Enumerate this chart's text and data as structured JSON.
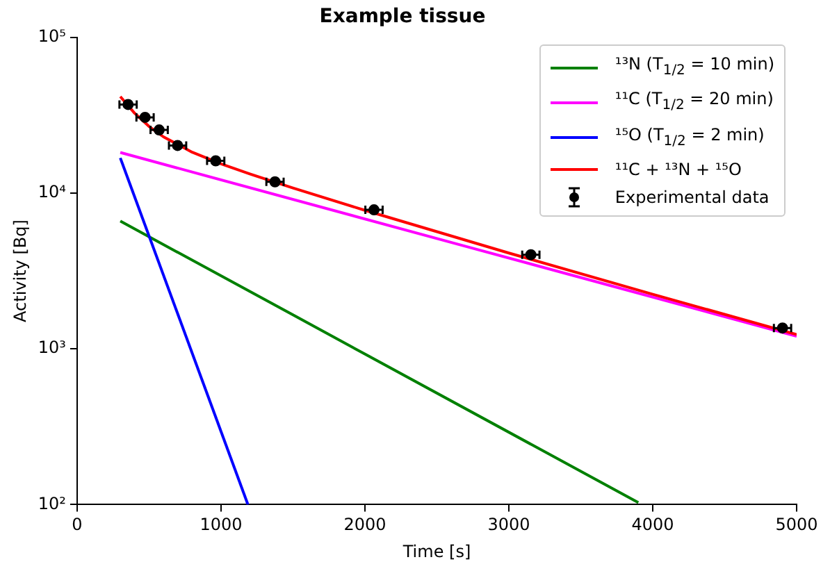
{
  "chart_data": {
    "type": "line",
    "title": "Example tissue",
    "xlabel": "Time [s]",
    "ylabel": "Activity [Bq]",
    "xlim": [
      0,
      5000
    ],
    "xticks": [
      0,
      1000,
      2000,
      3000,
      4000,
      5000
    ],
    "ylim": [
      100,
      100000
    ],
    "yticks": [
      {
        "value": 100,
        "label": "10²"
      },
      {
        "value": 1000,
        "label": "10³"
      },
      {
        "value": 10000,
        "label": "10⁴"
      },
      {
        "value": 100000,
        "label": "10⁵"
      }
    ],
    "log": "y",
    "grid": false,
    "legend": "top right",
    "series": [
      {
        "name": "¹³N (T$_{1/2}$ = 10 min)",
        "color": "#008000",
        "x": [
          300,
          1500,
          3900
        ],
        "values": [
          6600,
          1650,
          103
        ]
      },
      {
        "name": "¹¹C (T$_{1/2}$ = 20 min)",
        "color": "#ff00ff",
        "x": [
          300,
          2700,
          5000
        ],
        "values": [
          18200,
          4550,
          1205
        ]
      },
      {
        "name": "¹⁵O (T$_{1/2}$ = 2 min)",
        "color": "#0000ff",
        "x": [
          300,
          1187
        ],
        "values": [
          16800,
          100
        ]
      },
      {
        "name": "¹¹C + ¹³N + ¹⁵O",
        "color": "#ff0000",
        "x": [
          300,
          400,
          500,
          600,
          800,
          1000,
          1200,
          1500,
          2000,
          3000,
          4000,
          5000
        ],
        "values": [
          41600,
          32490,
          26750,
          22940,
          18275,
          15380,
          13256,
          10766,
          7745,
          4118,
          2240,
          1234
        ]
      },
      {
        "name": "Experimental data",
        "type": "scatter",
        "marker": "circle",
        "color": "#000000",
        "x": [
          354,
          472,
          570,
          698,
          963,
          1375,
          2063,
          3153,
          4902
        ],
        "values": [
          37000,
          30600,
          25400,
          20200,
          16100,
          11800,
          7800,
          4020,
          1360
        ],
        "xerrors": [
          60,
          60,
          60,
          60,
          60,
          60,
          60,
          60,
          60
        ]
      }
    ]
  }
}
